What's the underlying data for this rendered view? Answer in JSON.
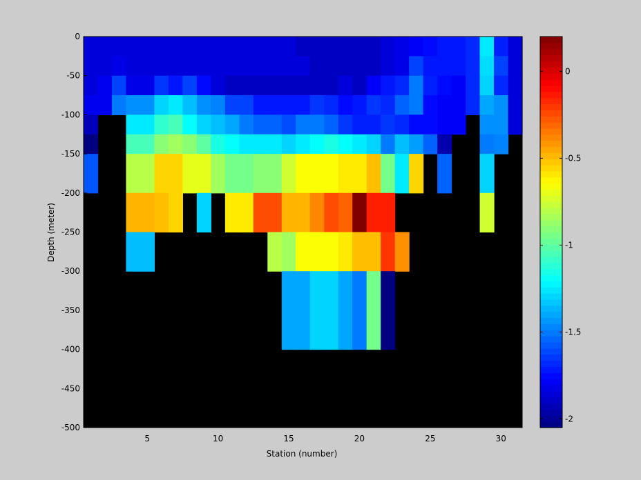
{
  "chart_data": [
    {
      "type": "heatmap",
      "title": "",
      "xlabel": "Station (number)",
      "ylabel": "Depth (meter)",
      "x": [
        1,
        2,
        3,
        4,
        5,
        6,
        7,
        8,
        9,
        10,
        11,
        12,
        13,
        14,
        15,
        16,
        17,
        18,
        19,
        20,
        21,
        22,
        23,
        24,
        25,
        26,
        27,
        28,
        29,
        30,
        31
      ],
      "xlim": [
        1,
        31
      ],
      "ylim": [
        -500,
        0
      ],
      "x_ticks": [
        "5",
        "10",
        "15",
        "20",
        "25",
        "30"
      ],
      "y_ticks": [
        "0",
        "-50",
        "-100",
        "-150",
        "-200",
        "-250",
        "-300",
        "-350",
        "-400",
        "-450",
        "-500"
      ],
      "depth_bins_m": [
        [
          0,
          -25
        ],
        [
          -25,
          -50
        ],
        [
          -50,
          -75
        ],
        [
          -75,
          -100
        ],
        [
          -100,
          -125
        ],
        [
          -125,
          -150
        ],
        [
          -150,
          -200
        ],
        [
          -200,
          -250
        ],
        [
          -250,
          -300
        ],
        [
          -300,
          -400
        ]
      ],
      "missing_color": "#000000",
      "values": [
        [
          -1.85,
          -1.85,
          -1.85,
          -1.85,
          -1.85,
          -1.85,
          -1.85,
          -1.85,
          -1.85,
          -1.85,
          -1.85,
          -1.85,
          -1.85,
          -1.85,
          -1.85,
          -1.9,
          -1.9,
          -1.9,
          -1.9,
          -1.9,
          -1.9,
          -1.85,
          -1.82,
          -1.78,
          -1.75,
          -1.72,
          -1.72,
          -1.68,
          -1.25,
          -1.7,
          -1.85
        ],
        [
          -1.85,
          -1.85,
          -1.82,
          -1.85,
          -1.85,
          -1.85,
          -1.85,
          -1.85,
          -1.85,
          -1.85,
          -1.85,
          -1.85,
          -1.85,
          -1.85,
          -1.85,
          -1.85,
          -1.9,
          -1.9,
          -1.9,
          -1.9,
          -1.9,
          -1.85,
          -1.82,
          -1.62,
          -1.72,
          -1.72,
          -1.72,
          -1.68,
          -1.28,
          -1.62,
          -1.85
        ],
        [
          -1.85,
          -1.8,
          -1.62,
          -1.82,
          -1.82,
          -1.65,
          -1.72,
          -1.62,
          -1.75,
          -1.85,
          -1.9,
          -1.9,
          -1.9,
          -1.9,
          -1.9,
          -1.9,
          -1.9,
          -1.9,
          -1.85,
          -1.9,
          -1.78,
          -1.72,
          -1.68,
          -1.5,
          -1.7,
          -1.75,
          -1.78,
          -1.68,
          -1.3,
          -1.68,
          -1.85
        ],
        [
          -1.8,
          -1.8,
          -1.5,
          -1.45,
          -1.45,
          -1.3,
          -1.25,
          -1.35,
          -1.45,
          -1.48,
          -1.62,
          -1.62,
          -1.72,
          -1.72,
          -1.72,
          -1.72,
          -1.65,
          -1.68,
          -1.75,
          -1.72,
          -1.65,
          -1.68,
          -1.55,
          -1.5,
          -1.75,
          -1.78,
          -1.78,
          -1.68,
          -1.4,
          -1.45,
          -1.85
        ],
        [
          -1.92,
          null,
          null,
          -1.25,
          -1.25,
          -1.1,
          -1.05,
          -1.2,
          -1.3,
          -1.35,
          -1.4,
          -1.5,
          -1.55,
          -1.55,
          -1.6,
          -1.5,
          -1.5,
          -1.55,
          -1.65,
          -1.7,
          -1.7,
          -1.65,
          -1.68,
          -1.75,
          -1.75,
          -1.78,
          -1.78,
          null,
          -1.45,
          -1.45,
          -1.85
        ],
        [
          -2.05,
          null,
          null,
          -1.05,
          -1.05,
          -0.9,
          -0.85,
          -0.9,
          -1.0,
          -1.15,
          -1.2,
          -1.25,
          -1.25,
          -1.25,
          -1.3,
          -1.25,
          -1.2,
          -1.15,
          -1.2,
          -1.25,
          -1.3,
          -1.5,
          -1.35,
          -1.42,
          -1.55,
          -1.95,
          null,
          null,
          -1.5,
          -1.48,
          null
        ],
        [
          -1.58,
          null,
          null,
          -0.8,
          -0.8,
          -0.55,
          -0.55,
          -0.7,
          -0.7,
          -0.85,
          -0.95,
          -0.95,
          -0.9,
          -0.9,
          -0.75,
          -0.65,
          -0.65,
          -0.65,
          -0.6,
          -0.6,
          -0.5,
          -0.95,
          -1.25,
          -0.55,
          null,
          -1.55,
          null,
          null,
          -1.3,
          null,
          null
        ],
        [
          null,
          null,
          null,
          -0.48,
          -0.48,
          -0.5,
          -0.55,
          null,
          -1.3,
          null,
          -0.6,
          -0.6,
          -0.25,
          -0.25,
          -0.48,
          -0.48,
          -0.38,
          -0.25,
          -0.3,
          0.22,
          -0.15,
          -0.15,
          null,
          null,
          null,
          null,
          null,
          null,
          -0.75,
          null,
          null
        ],
        [
          null,
          null,
          null,
          -1.35,
          -1.35,
          null,
          null,
          null,
          null,
          null,
          null,
          null,
          null,
          -0.8,
          -0.85,
          -0.65,
          -0.65,
          -0.65,
          -0.6,
          -0.5,
          -0.5,
          -0.2,
          -0.4,
          null,
          null,
          null,
          null,
          null,
          null,
          null,
          null
        ],
        [
          null,
          null,
          null,
          null,
          null,
          null,
          null,
          null,
          null,
          null,
          null,
          null,
          null,
          null,
          -1.4,
          -1.4,
          -1.3,
          -1.3,
          -1.4,
          -1.5,
          -0.95,
          -2.05,
          null,
          null,
          null,
          null,
          null,
          null,
          null,
          null,
          null
        ]
      ],
      "colorbar": {
        "range": [
          -2.05,
          0.2
        ],
        "ticks": [
          "0",
          "-0.5",
          "-1",
          "-1.5",
          "-2"
        ],
        "colormap": "jet"
      }
    }
  ]
}
